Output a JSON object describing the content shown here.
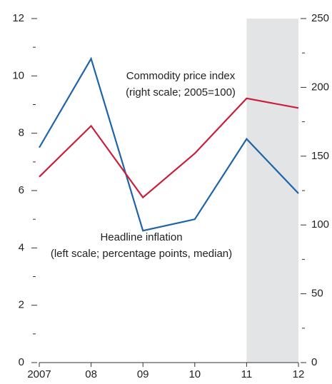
{
  "chart_data": {
    "type": "line",
    "categories": [
      "2007",
      "08",
      "09",
      "10",
      "11",
      "12"
    ],
    "series": [
      {
        "name": "Headline inflation (left scale; percentage points, median)",
        "color": "#1f64a8",
        "values": [
          7.5,
          10.6,
          4.6,
          5.0,
          7.8,
          5.9
        ]
      },
      {
        "name": "Commodity price index (right scale; 2005=100)",
        "color": "#c8203c",
        "axis": "y2",
        "values": [
          135,
          172,
          120,
          152,
          192,
          185
        ]
      }
    ],
    "annotations": [
      {
        "lines": [
          "Commodity price index",
          "(right scale; 2005=100)"
        ]
      },
      {
        "lines": [
          "Headline inflation",
          "(left scale; percentage points, median)"
        ]
      }
    ],
    "ylim": [
      0,
      12
    ],
    "yticks": [
      0,
      2,
      4,
      6,
      8,
      10,
      12
    ],
    "y_minor_ticks": [
      1,
      3,
      5,
      7,
      9,
      11
    ],
    "y2lim": [
      0,
      250
    ],
    "y2ticks": [
      0,
      50,
      100,
      150,
      200,
      250
    ],
    "y2_minor_ticks": [
      25,
      75,
      125,
      175,
      225
    ],
    "shade_x": [
      4,
      5
    ],
    "shade_color": "#e3e4e6"
  }
}
